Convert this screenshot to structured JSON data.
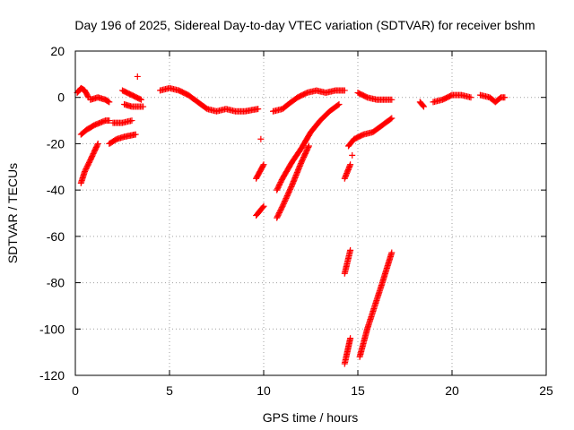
{
  "chart_data": {
    "type": "scatter",
    "title": "Day 196 of 2025, Sidereal Day-to-day VTEC variation (SDTVAR) for receiver bshm",
    "xlabel": "GPS time / hours",
    "ylabel": "SDTVAR / TECUs",
    "xlim": [
      0,
      25
    ],
    "ylim": [
      -120,
      20
    ],
    "xticks": [
      0,
      5,
      10,
      15,
      20,
      25
    ],
    "yticks": [
      -120,
      -100,
      -80,
      -60,
      -40,
      -20,
      0,
      20
    ],
    "grid": true,
    "marker": "+",
    "color": "#ff0000",
    "series": [
      {
        "name": "s1",
        "segments": [
          [
            [
              0.1,
              2
            ],
            [
              0.3,
              4
            ],
            [
              0.5,
              3
            ],
            [
              0.7,
              0
            ]
          ]
        ]
      },
      {
        "name": "s2",
        "segments": [
          [
            [
              0.3,
              -37
            ],
            [
              0.5,
              -32
            ],
            [
              0.8,
              -27
            ],
            [
              1.2,
              -20
            ]
          ]
        ]
      },
      {
        "name": "s3",
        "segments": [
          [
            [
              0.3,
              -16
            ],
            [
              0.6,
              -14
            ],
            [
              1.0,
              -12
            ],
            [
              1.6,
              -10
            ],
            [
              1.8,
              -10
            ]
          ]
        ]
      },
      {
        "name": "s4",
        "segments": [
          [
            [
              0.8,
              -1
            ],
            [
              1.2,
              0
            ],
            [
              1.6,
              -1
            ],
            [
              1.8,
              -2
            ]
          ]
        ]
      },
      {
        "name": "s5",
        "segments": [
          [
            [
              1.8,
              -20
            ],
            [
              2.2,
              -18
            ],
            [
              2.6,
              -17
            ],
            [
              3.2,
              -16
            ]
          ]
        ]
      },
      {
        "name": "s6",
        "segments": [
          [
            [
              2.0,
              -11
            ],
            [
              2.5,
              -11
            ],
            [
              3.0,
              -10
            ]
          ]
        ]
      },
      {
        "name": "s7",
        "segments": [
          [
            [
              2.5,
              3
            ],
            [
              3.0,
              1
            ],
            [
              3.5,
              -1
            ]
          ]
        ]
      },
      {
        "name": "s8",
        "segments": [
          [
            [
              2.6,
              -3
            ],
            [
              3.0,
              -4
            ],
            [
              3.6,
              -4
            ]
          ]
        ]
      },
      {
        "name": "s9",
        "segments": [
          [
            [
              4.5,
              3
            ],
            [
              5.0,
              4
            ],
            [
              5.5,
              3
            ],
            [
              6.0,
              1
            ],
            [
              6.5,
              -2
            ],
            [
              7.0,
              -5
            ],
            [
              7.5,
              -6
            ],
            [
              8.0,
              -5
            ],
            [
              8.5,
              -6
            ],
            [
              9.0,
              -6
            ],
            [
              9.7,
              -5
            ]
          ]
        ]
      },
      {
        "name": "s10",
        "segments": [
          [
            [
              9.6,
              -35
            ],
            [
              10.0,
              -29
            ]
          ],
          [
            [
              9.6,
              -51
            ],
            [
              10.0,
              -47
            ]
          ]
        ]
      },
      {
        "name": "s11",
        "segments": [
          [
            [
              10.5,
              -6
            ],
            [
              11.0,
              -5
            ],
            [
              11.3,
              -3
            ],
            [
              11.8,
              0
            ],
            [
              12.3,
              2
            ],
            [
              12.8,
              3
            ],
            [
              13.3,
              2
            ],
            [
              13.8,
              3
            ],
            [
              14.3,
              3
            ]
          ]
        ]
      },
      {
        "name": "s12",
        "segments": [
          [
            [
              10.7,
              -40
            ],
            [
              11.0,
              -35
            ],
            [
              11.5,
              -28
            ],
            [
              12.0,
              -22
            ],
            [
              12.5,
              -15
            ],
            [
              13.0,
              -10
            ],
            [
              13.5,
              -6
            ],
            [
              14.0,
              -3
            ]
          ]
        ]
      },
      {
        "name": "s13",
        "segments": [
          [
            [
              10.7,
              -52
            ],
            [
              11.0,
              -47
            ],
            [
              11.5,
              -38
            ],
            [
              12.0,
              -28
            ],
            [
              12.4,
              -21
            ]
          ]
        ]
      },
      {
        "name": "s14",
        "segments": [
          [
            [
              14.3,
              -35
            ],
            [
              14.6,
              -29
            ]
          ],
          [
            [
              14.3,
              -76
            ],
            [
              14.6,
              -66
            ]
          ],
          [
            [
              14.3,
              -115
            ],
            [
              14.6,
              -104
            ]
          ]
        ]
      },
      {
        "name": "s15",
        "segments": [
          [
            [
              14.5,
              -21
            ],
            [
              14.8,
              -18
            ],
            [
              15.3,
              -16
            ],
            [
              15.8,
              -15
            ],
            [
              16.3,
              -12
            ],
            [
              16.8,
              -9
            ]
          ]
        ]
      },
      {
        "name": "s16",
        "segments": [
          [
            [
              15.0,
              2
            ],
            [
              15.5,
              0
            ],
            [
              16.0,
              -1
            ],
            [
              16.5,
              -1
            ],
            [
              16.8,
              -1
            ]
          ]
        ]
      },
      {
        "name": "s17",
        "segments": [
          [
            [
              15.1,
              -112
            ],
            [
              15.5,
              -100
            ],
            [
              15.9,
              -90
            ],
            [
              16.3,
              -80
            ],
            [
              16.8,
              -67
            ]
          ]
        ]
      },
      {
        "name": "s18",
        "segments": [
          [
            [
              18.3,
              -2
            ],
            [
              18.5,
              -4
            ]
          ],
          [
            [
              19.0,
              -2
            ],
            [
              19.5,
              -1
            ],
            [
              20.0,
              1
            ],
            [
              20.5,
              1
            ],
            [
              21.0,
              0
            ]
          ]
        ]
      },
      {
        "name": "s19",
        "segments": [
          [
            [
              21.5,
              1
            ],
            [
              22.0,
              0
            ],
            [
              22.3,
              -2
            ],
            [
              22.6,
              0
            ],
            [
              22.8,
              0
            ]
          ]
        ]
      }
    ],
    "outliers": [
      [
        3.3,
        9
      ],
      [
        9.85,
        -18
      ],
      [
        14.7,
        -25
      ]
    ]
  }
}
